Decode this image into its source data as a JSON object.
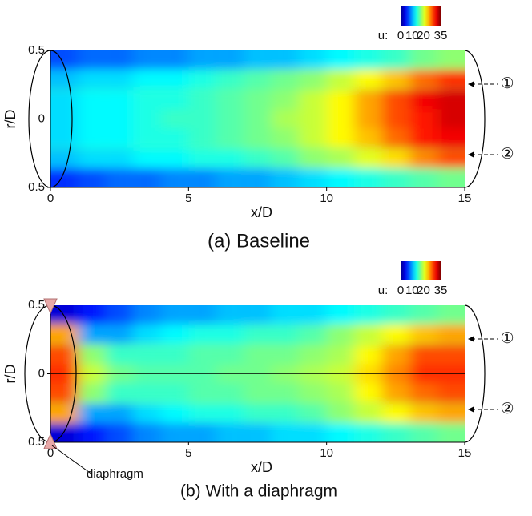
{
  "chart_data": [
    {
      "type": "heatmap",
      "title": "(a) Baseline",
      "xlabel": "x/D",
      "ylabel": "r/D",
      "xlim": [
        0,
        15
      ],
      "xticks": [
        0,
        5,
        10,
        15
      ],
      "ylim": [
        -0.5,
        0.5
      ],
      "yticks": [
        {
          "value": 0.5,
          "label": "0.5"
        },
        0,
        {
          "value": -0.5,
          "label": "0.5"
        }
      ],
      "clabel": "u:",
      "clim": [
        0,
        35
      ],
      "cticks": [
        0,
        10,
        20,
        35
      ],
      "annotations": [
        "①",
        "②"
      ],
      "x": [
        0.5,
        1.5,
        2.5,
        3.5,
        4.5,
        5.5,
        6.5,
        7.5,
        8.5,
        9.5,
        10.5,
        11.5,
        12.5,
        13.5,
        14.5
      ],
      "y": [
        0.43,
        0.29,
        0.14,
        0,
        -0.14,
        -0.29,
        -0.43
      ],
      "z": [
        [
          7,
          8,
          8,
          9,
          9,
          10,
          10,
          11,
          11,
          12,
          13,
          14,
          15,
          17,
          18
        ],
        [
          11,
          12,
          12,
          13,
          13,
          14,
          15,
          16,
          17,
          18,
          20,
          22,
          24,
          27,
          29
        ],
        [
          12,
          13,
          13,
          14,
          14,
          15,
          16,
          17,
          18,
          20,
          22,
          25,
          28,
          31,
          32
        ],
        [
          12,
          13,
          13,
          14,
          15,
          15,
          16,
          17,
          19,
          20,
          22,
          25,
          28,
          30,
          32
        ],
        [
          12,
          13,
          13,
          14,
          14,
          15,
          16,
          17,
          18,
          20,
          22,
          24,
          27,
          30,
          31
        ],
        [
          11,
          12,
          12,
          13,
          13,
          14,
          14,
          15,
          16,
          18,
          19,
          21,
          23,
          26,
          28
        ],
        [
          6,
          7,
          8,
          8,
          9,
          9,
          10,
          10,
          11,
          12,
          13,
          14,
          15,
          16,
          17
        ]
      ]
    },
    {
      "type": "heatmap",
      "title": "(b) With a diaphragm",
      "xlabel": "x/D",
      "ylabel": "r/D",
      "xlim": [
        0,
        15
      ],
      "xticks": [
        0,
        5,
        10,
        15
      ],
      "ylim": [
        -0.5,
        0.5
      ],
      "yticks": [
        {
          "value": 0.5,
          "label": "0.5"
        },
        0,
        {
          "value": -0.5,
          "label": "0.5"
        }
      ],
      "clabel": "u:",
      "clim": [
        0,
        35
      ],
      "cticks": [
        0,
        10,
        20,
        35
      ],
      "annotations": [
        "①",
        "②"
      ],
      "marker_label": "diaphragm",
      "x": [
        0.5,
        1.5,
        2.5,
        3.5,
        4.5,
        5.5,
        6.5,
        7.5,
        8.5,
        9.5,
        10.5,
        11.5,
        12.5,
        13.5,
        14.5
      ],
      "y": [
        0.43,
        0.29,
        0.14,
        0,
        -0.14,
        -0.29,
        -0.43
      ],
      "z": [
        [
          3,
          5,
          7,
          9,
          10,
          10,
          11,
          11,
          12,
          12,
          13,
          14,
          15,
          16,
          17
        ],
        [
          25,
          10,
          10,
          12,
          13,
          14,
          14,
          15,
          15,
          16,
          18,
          20,
          22,
          24,
          25
        ],
        [
          28,
          18,
          15,
          15,
          15,
          16,
          16,
          17,
          17,
          18,
          19,
          22,
          25,
          28,
          28
        ],
        [
          29,
          20,
          17,
          16,
          16,
          16,
          17,
          17,
          18,
          19,
          20,
          23,
          26,
          29,
          29
        ],
        [
          28,
          18,
          15,
          15,
          15,
          16,
          16,
          17,
          17,
          18,
          19,
          22,
          25,
          27,
          28
        ],
        [
          25,
          10,
          10,
          12,
          13,
          14,
          14,
          15,
          15,
          16,
          18,
          20,
          22,
          24,
          25
        ],
        [
          3,
          5,
          7,
          9,
          10,
          10,
          11,
          11,
          12,
          12,
          13,
          14,
          15,
          16,
          17
        ]
      ]
    }
  ]
}
